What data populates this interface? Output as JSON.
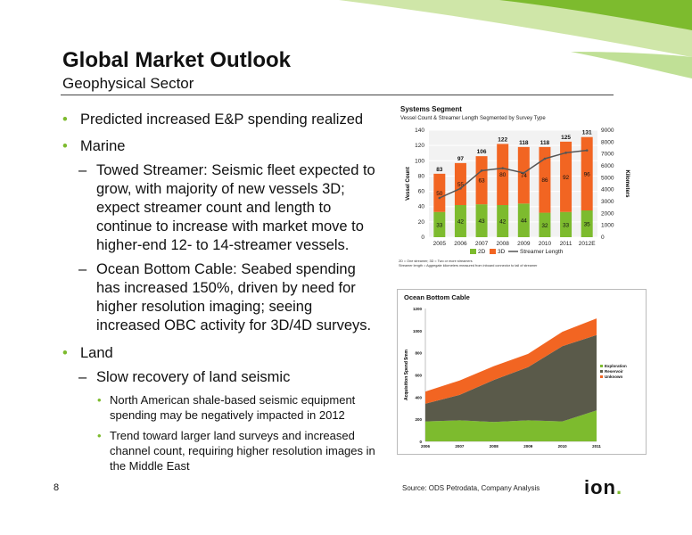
{
  "slide": {
    "title": "Global Market Outlook",
    "subtitle": "Geophysical Sector",
    "page_number": "8",
    "source": "Source: ODS Petrodata, Company Analysis",
    "logo_text": "ion"
  },
  "bullets": {
    "b1": "Predicted increased E&P spending realized",
    "b2": "Marine",
    "b2a": "Towed Streamer:  Seismic fleet expected to grow, with majority of new vessels 3D; expect streamer count and length to continue to increase with market move to higher-end 12- to 14-streamer vessels.",
    "b2b": "Ocean Bottom Cable:  Seabed spending has increased 150%, driven by need for higher resolution imaging; seeing increased OBC activity for 3D/4D surveys.",
    "b3": "Land",
    "b3a": "Slow recovery of land seismic",
    "b3a1": "North American shale-based seismic equipment spending may be negatively impacted in 2012",
    "b3a2": "Trend toward larger land surveys and increased channel count, requiring higher resolution images in the Middle East"
  },
  "colors": {
    "green": "#7dbb2e",
    "orange": "#f26522",
    "dark": "#5a5a4a",
    "line": "#555555"
  },
  "chart_data": [
    {
      "type": "bar",
      "title": "Systems Segment",
      "subtitle": "Vessel Count & Streamer Length Segmented by Survey Type",
      "ylabel": "Vessel Count",
      "y2label": "Kilometers",
      "ylim": [
        0,
        140
      ],
      "y2lim": [
        0,
        9000
      ],
      "yticks": [
        0,
        20,
        40,
        60,
        80,
        100,
        120,
        140
      ],
      "y2ticks": [
        0,
        1000,
        2000,
        3000,
        4000,
        5000,
        6000,
        7000,
        8000,
        9000
      ],
      "categories": [
        "2005",
        "2006",
        "2007",
        "2008",
        "2009",
        "2010",
        "2011",
        "2012E"
      ],
      "series": [
        {
          "name": "2D",
          "values": [
            33,
            42,
            43,
            42,
            44,
            32,
            33,
            35
          ]
        },
        {
          "name": "3D",
          "values": [
            50,
            55,
            63,
            80,
            74,
            86,
            92,
            96
          ]
        },
        {
          "name": "Streamer Length",
          "values": [
            3300,
            4100,
            5600,
            5800,
            5400,
            6600,
            7100,
            7300
          ]
        }
      ],
      "totals": [
        83,
        97,
        106,
        122,
        118,
        118,
        125,
        131
      ],
      "footnotes": [
        "2D = One streamer;  3D = Two or more streamers",
        "Streamer length = Aggregate kilometers measured from inboard connector to tail of streamer"
      ]
    },
    {
      "type": "area",
      "title": "Ocean Bottom Cable",
      "ylabel": "Acquisition Spend $mm",
      "ylim": [
        0,
        1200
      ],
      "yticks": [
        0,
        200,
        400,
        600,
        800,
        1000,
        1200
      ],
      "x": [
        "2006",
        "2007",
        "2008",
        "2009",
        "2010",
        "2011"
      ],
      "series": [
        {
          "name": "Exploration",
          "values": [
            180,
            190,
            175,
            190,
            180,
            280
          ]
        },
        {
          "name": "Reservoir",
          "values": [
            160,
            230,
            380,
            480,
            680,
            680
          ]
        },
        {
          "name": "Unknown",
          "values": [
            110,
            130,
            125,
            120,
            130,
            150
          ]
        }
      ]
    }
  ]
}
